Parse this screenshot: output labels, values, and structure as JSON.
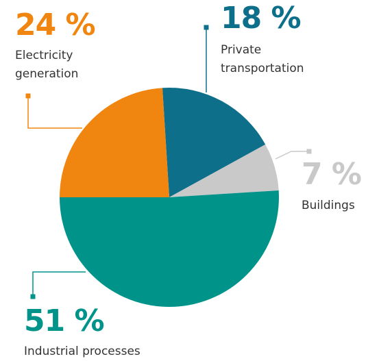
{
  "chart_data": {
    "type": "pie",
    "categories": [
      "Private transportation",
      "Buildings",
      "Industrial processes",
      "Electricity generation"
    ],
    "values": [
      18,
      7,
      51,
      24
    ],
    "value_labels": [
      "18 %",
      "7 %",
      "51 %",
      "24 %"
    ],
    "colors": [
      "#0e6f8a",
      "#c9c9c9",
      "#00938a",
      "#f0850f"
    ]
  }
}
